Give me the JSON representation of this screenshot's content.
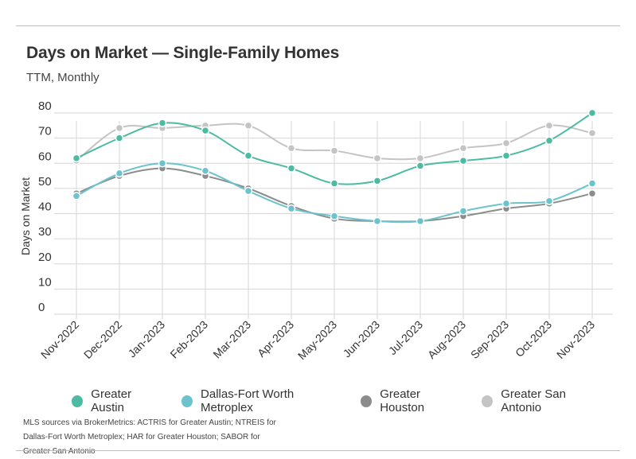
{
  "header": {
    "title": "Days on Market — Single-Family Homes",
    "subtitle": "TTM, Monthly"
  },
  "source_note": "MLS sources via BrokerMetrics: ACTRIS for Greater Austin; NTREIS for Dallas-Fort Worth Metroplex; HAR for Greater Houston; SABOR for Greater San Antonio",
  "chart_data": {
    "type": "line",
    "title": "Days on Market — Single-Family Homes",
    "subtitle": "TTM, Monthly",
    "ylabel": "Days on Market",
    "xlabel": "",
    "ylim": [
      0,
      80
    ],
    "yticks": [
      0,
      10,
      20,
      30,
      40,
      50,
      60,
      70,
      80
    ],
    "grid": true,
    "legend_position": "bottom",
    "categories": [
      "Nov-2022",
      "Dec-2022",
      "Jan-2023",
      "Feb-2023",
      "Mar-2023",
      "Apr-2023",
      "May-2023",
      "Jun-2023",
      "Jul-2023",
      "Aug-2023",
      "Sep-2023",
      "Oct-2023",
      "Nov-2023"
    ],
    "series": [
      {
        "name": "Greater Austin",
        "color": "#4dbba2",
        "values": [
          62,
          70,
          76,
          73,
          63,
          58,
          52,
          53,
          59,
          61,
          63,
          69,
          80
        ]
      },
      {
        "name": "Dallas-Fort Worth Metroplex",
        "color": "#6bc4cd",
        "values": [
          47,
          56,
          60,
          57,
          49,
          42,
          39,
          37,
          37,
          41,
          44,
          45,
          52
        ]
      },
      {
        "name": "Greater Houston",
        "color": "#8c8c8c",
        "values": [
          48,
          55,
          58,
          55,
          50,
          43,
          38,
          37,
          37,
          39,
          42,
          44,
          48
        ]
      },
      {
        "name": "Greater San Antonio",
        "color": "#c4c4c4",
        "values": [
          61,
          74,
          74,
          75,
          75,
          66,
          65,
          62,
          62,
          66,
          68,
          75,
          72
        ]
      }
    ]
  }
}
